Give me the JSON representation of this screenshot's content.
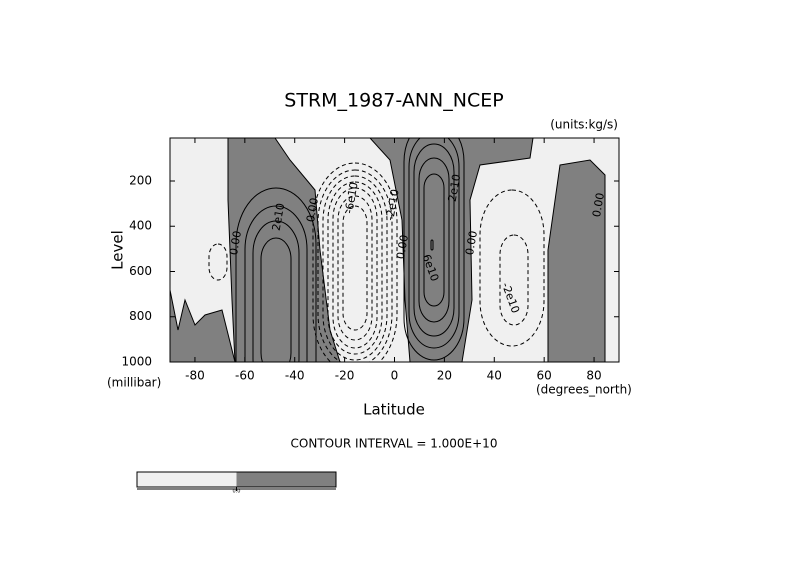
{
  "chart_data": {
    "type": "contour",
    "title": "STRM_1987-ANN_NCEP",
    "units_label": "(units:kg/s)",
    "x_label": "Latitude",
    "x_unit_label": "(degrees_north)",
    "y_label": "Level",
    "y_unit_label": "(millibar)",
    "footer": "CONTOUR INTERVAL = 1.000E+10",
    "xlim": [
      -90,
      90
    ],
    "xticks": [
      -80,
      -60,
      -40,
      -20,
      0,
      20,
      40,
      60,
      80
    ],
    "ylim": [
      1000,
      10
    ],
    "yticks": [
      200,
      400,
      600,
      800,
      1000
    ],
    "positive_color": "#808080",
    "negative_color": "#f0f0f0",
    "contour_labels": [
      {
        "value": 0,
        "label": "0.00"
      },
      {
        "value": 20000000000,
        "label": "2e10"
      },
      {
        "value": 0,
        "label": "0.00"
      },
      {
        "value": -60000000000,
        "label": "-6e10"
      },
      {
        "value": -20000000000,
        "label": "-2e10"
      },
      {
        "value": 0,
        "label": "0.00"
      },
      {
        "value": 20000000000,
        "label": "2e10"
      },
      {
        "value": 60000000000,
        "label": "6e10"
      },
      {
        "value": 0,
        "label": "0.00"
      },
      {
        "value": -20000000000,
        "label": "-2e10"
      },
      {
        "value": 0,
        "label": "0.00"
      }
    ],
    "colorbar_ticks": [
      {
        "value": 0,
        "label": "0.0"
      }
    ]
  }
}
